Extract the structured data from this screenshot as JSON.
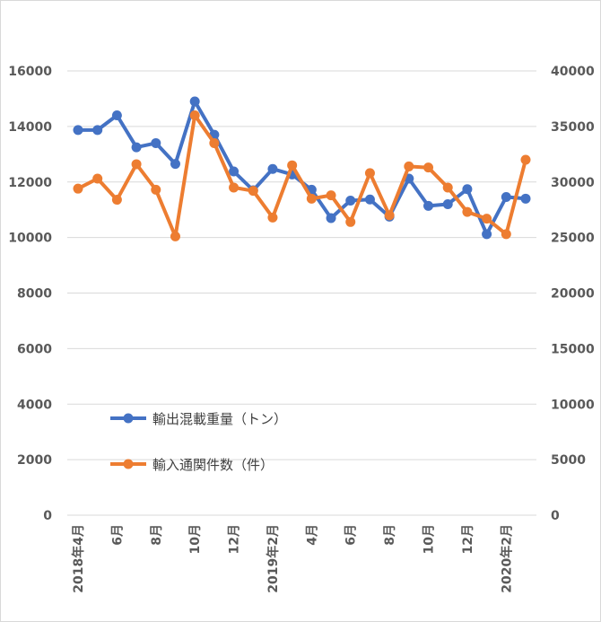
{
  "chart_data": {
    "type": "line",
    "title": "",
    "left_axis": {
      "ylim": [
        0,
        16000
      ],
      "ticks": [
        0,
        2000,
        4000,
        6000,
        8000,
        10000,
        12000,
        14000,
        16000
      ]
    },
    "right_axis": {
      "ylim": [
        0,
        40000
      ],
      "ticks": [
        0,
        5000,
        10000,
        15000,
        20000,
        25000,
        30000,
        35000,
        40000
      ]
    },
    "grid": true,
    "legend_position": "inside-left",
    "x": [
      "2018年4月",
      "5月",
      "6月",
      "7月",
      "8月",
      "9月",
      "10月",
      "11月",
      "12月",
      "2019年1月",
      "2019年2月",
      "3月",
      "4月",
      "5月",
      "6月",
      "7月",
      "8月",
      "9月",
      "10月",
      "11月",
      "12月",
      "2020年1月",
      "2020年2月",
      "3月"
    ],
    "x_tick_labels": [
      "2018年4月",
      "",
      "6月",
      "",
      "8月",
      "",
      "10月",
      "",
      "12月",
      "",
      "2019年2月",
      "",
      "4月",
      "",
      "6月",
      "",
      "8月",
      "",
      "10月",
      "",
      "12月",
      "",
      "2020年2月",
      ""
    ],
    "series": [
      {
        "name": "輸出混載重量（トン）",
        "axis": "left",
        "color": "#4472C4",
        "values": [
          13870,
          13870,
          14400,
          13250,
          13400,
          12650,
          14900,
          13700,
          12380,
          11700,
          12470,
          12270,
          11720,
          10700,
          11330,
          11370,
          10750,
          12120,
          11140,
          11200,
          11740,
          10120,
          11460,
          11400
        ]
      },
      {
        "name": "輸入通関件数（件）",
        "axis": "right",
        "color": "#ED7D31",
        "values": [
          29400,
          30300,
          28400,
          31600,
          29300,
          25100,
          36000,
          33500,
          29500,
          29200,
          26800,
          31500,
          28500,
          28800,
          26400,
          30800,
          27000,
          31400,
          31300,
          29500,
          27300,
          26700,
          25300,
          32000
        ]
      }
    ]
  }
}
